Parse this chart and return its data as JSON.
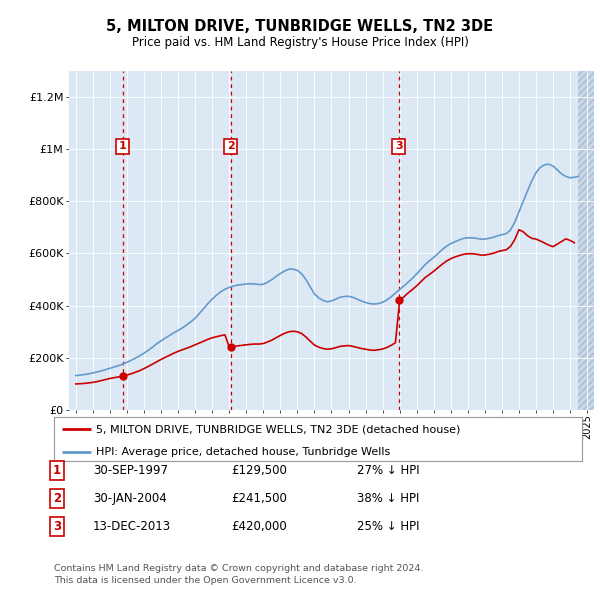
{
  "title": "5, MILTON DRIVE, TUNBRIDGE WELLS, TN2 3DE",
  "subtitle": "Price paid vs. HM Land Registry's House Price Index (HPI)",
  "title_fontsize": 11,
  "subtitle_fontsize": 9,
  "background_color": "#ffffff",
  "plot_bg_color": "#dce9f5",
  "sale_points": [
    {
      "label": "1",
      "date": "30-SEP-1997",
      "price": 129500,
      "x": 1997.75,
      "hpi_pct": "27% ↓ HPI"
    },
    {
      "label": "2",
      "date": "30-JAN-2004",
      "price": 241500,
      "x": 2004.08,
      "hpi_pct": "38% ↓ HPI"
    },
    {
      "label": "3",
      "date": "13-DEC-2013",
      "price": 420000,
      "x": 2013.95,
      "hpi_pct": "25% ↓ HPI"
    }
  ],
  "ylim": [
    0,
    1300000
  ],
  "xlim": [
    1994.6,
    2025.4
  ],
  "yticks": [
    0,
    200000,
    400000,
    600000,
    800000,
    1000000,
    1200000
  ],
  "ytick_labels": [
    "£0",
    "£200K",
    "£400K",
    "£600K",
    "£800K",
    "£1M",
    "£1.2M"
  ],
  "legend_line1": "5, MILTON DRIVE, TUNBRIDGE WELLS, TN2 3DE (detached house)",
  "legend_line2": "HPI: Average price, detached house, Tunbridge Wells",
  "footer": "Contains HM Land Registry data © Crown copyright and database right 2024.\nThis data is licensed under the Open Government Licence v3.0.",
  "red_color": "#cc0000",
  "blue_color": "#6699cc",
  "years_hpi": [
    1995.0,
    1995.25,
    1995.5,
    1995.75,
    1996.0,
    1996.25,
    1996.5,
    1996.75,
    1997.0,
    1997.25,
    1997.5,
    1997.75,
    1998.0,
    1998.25,
    1998.5,
    1998.75,
    1999.0,
    1999.25,
    1999.5,
    1999.75,
    2000.0,
    2000.25,
    2000.5,
    2000.75,
    2001.0,
    2001.25,
    2001.5,
    2001.75,
    2002.0,
    2002.25,
    2002.5,
    2002.75,
    2003.0,
    2003.25,
    2003.5,
    2003.75,
    2004.0,
    2004.25,
    2004.5,
    2004.75,
    2005.0,
    2005.25,
    2005.5,
    2005.75,
    2006.0,
    2006.25,
    2006.5,
    2006.75,
    2007.0,
    2007.25,
    2007.5,
    2007.75,
    2008.0,
    2008.25,
    2008.5,
    2008.75,
    2009.0,
    2009.25,
    2009.5,
    2009.75,
    2010.0,
    2010.25,
    2010.5,
    2010.75,
    2011.0,
    2011.25,
    2011.5,
    2011.75,
    2012.0,
    2012.25,
    2012.5,
    2012.75,
    2013.0,
    2013.25,
    2013.5,
    2013.75,
    2014.0,
    2014.25,
    2014.5,
    2014.75,
    2015.0,
    2015.25,
    2015.5,
    2015.75,
    2016.0,
    2016.25,
    2016.5,
    2016.75,
    2017.0,
    2017.25,
    2017.5,
    2017.75,
    2018.0,
    2018.25,
    2018.5,
    2018.75,
    2019.0,
    2019.25,
    2019.5,
    2019.75,
    2020.0,
    2020.25,
    2020.5,
    2020.75,
    2021.0,
    2021.25,
    2021.5,
    2021.75,
    2022.0,
    2022.25,
    2022.5,
    2022.75,
    2023.0,
    2023.25,
    2023.5,
    2023.75,
    2024.0,
    2024.25,
    2024.5
  ],
  "hpi_values": [
    132000,
    134000,
    136000,
    139000,
    142000,
    146000,
    150000,
    155000,
    160000,
    165000,
    170000,
    176000,
    183000,
    191000,
    199000,
    208000,
    218000,
    229000,
    241000,
    254000,
    265000,
    276000,
    286000,
    296000,
    305000,
    315000,
    326000,
    338000,
    352000,
    370000,
    389000,
    408000,
    425000,
    440000,
    453000,
    463000,
    470000,
    475000,
    479000,
    481000,
    483000,
    484000,
    483000,
    481000,
    482000,
    490000,
    500000,
    512000,
    523000,
    533000,
    540000,
    540000,
    535000,
    522000,
    500000,
    472000,
    445000,
    430000,
    420000,
    415000,
    418000,
    425000,
    432000,
    435000,
    436000,
    432000,
    425000,
    418000,
    412000,
    408000,
    406000,
    408000,
    413000,
    422000,
    434000,
    448000,
    462000,
    476000,
    490000,
    505000,
    522000,
    540000,
    558000,
    572000,
    585000,
    600000,
    615000,
    628000,
    638000,
    645000,
    652000,
    658000,
    660000,
    660000,
    658000,
    655000,
    655000,
    658000,
    662000,
    668000,
    672000,
    676000,
    690000,
    720000,
    760000,
    800000,
    840000,
    878000,
    910000,
    930000,
    940000,
    942000,
    935000,
    920000,
    905000,
    895000,
    890000,
    892000,
    896000
  ],
  "years_red": [
    1995.0,
    1995.25,
    1995.5,
    1995.75,
    1996.0,
    1996.25,
    1996.5,
    1996.75,
    1997.0,
    1997.25,
    1997.5,
    1997.75,
    1998.0,
    1998.25,
    1998.5,
    1998.75,
    1999.0,
    1999.25,
    1999.5,
    1999.75,
    2000.0,
    2000.25,
    2000.5,
    2000.75,
    2001.0,
    2001.25,
    2001.5,
    2001.75,
    2002.0,
    2002.25,
    2002.5,
    2002.75,
    2003.0,
    2003.25,
    2003.5,
    2003.75,
    2004.0,
    2004.25,
    2004.5,
    2004.75,
    2005.0,
    2005.25,
    2005.5,
    2005.75,
    2006.0,
    2006.25,
    2006.5,
    2006.75,
    2007.0,
    2007.25,
    2007.5,
    2007.75,
    2008.0,
    2008.25,
    2008.5,
    2008.75,
    2009.0,
    2009.25,
    2009.5,
    2009.75,
    2010.0,
    2010.25,
    2010.5,
    2010.75,
    2011.0,
    2011.25,
    2011.5,
    2011.75,
    2012.0,
    2012.25,
    2012.5,
    2012.75,
    2013.0,
    2013.25,
    2013.5,
    2013.75,
    2014.0,
    2014.25,
    2014.5,
    2014.75,
    2015.0,
    2015.25,
    2015.5,
    2015.75,
    2016.0,
    2016.25,
    2016.5,
    2016.75,
    2017.0,
    2017.25,
    2017.5,
    2017.75,
    2018.0,
    2018.25,
    2018.5,
    2018.75,
    2019.0,
    2019.25,
    2019.5,
    2019.75,
    2020.0,
    2020.25,
    2020.5,
    2020.75,
    2021.0,
    2021.25,
    2021.5,
    2021.75,
    2022.0,
    2022.25,
    2022.5,
    2022.75,
    2023.0,
    2023.25,
    2023.5,
    2023.75,
    2024.0,
    2024.25
  ],
  "red_values": [
    100000,
    101000,
    102000,
    104000,
    106000,
    109000,
    113000,
    117000,
    121000,
    124000,
    127000,
    129500,
    134000,
    139000,
    145000,
    151000,
    159000,
    167000,
    176000,
    185000,
    194000,
    202000,
    210000,
    218000,
    225000,
    231000,
    237000,
    243000,
    250000,
    257000,
    264000,
    271000,
    277000,
    281000,
    285000,
    288000,
    241500,
    243000,
    246000,
    248000,
    250000,
    252000,
    253000,
    253000,
    255000,
    261000,
    268000,
    277000,
    286000,
    294000,
    300000,
    302000,
    300000,
    293000,
    280000,
    264000,
    249000,
    241000,
    236000,
    233000,
    235000,
    239000,
    244000,
    246000,
    247000,
    244000,
    240000,
    236000,
    233000,
    230000,
    229000,
    231000,
    234000,
    240000,
    248000,
    258000,
    420000,
    434000,
    449000,
    462000,
    476000,
    492000,
    508000,
    520000,
    532000,
    546000,
    559000,
    571000,
    580000,
    587000,
    592000,
    597000,
    599000,
    599000,
    597000,
    594000,
    594000,
    597000,
    601000,
    607000,
    611000,
    614000,
    627000,
    653000,
    691000,
    683000,
    668000,
    658000,
    655000,
    648000,
    640000,
    632000,
    626000,
    636000,
    646000,
    656000,
    650000,
    641000
  ]
}
